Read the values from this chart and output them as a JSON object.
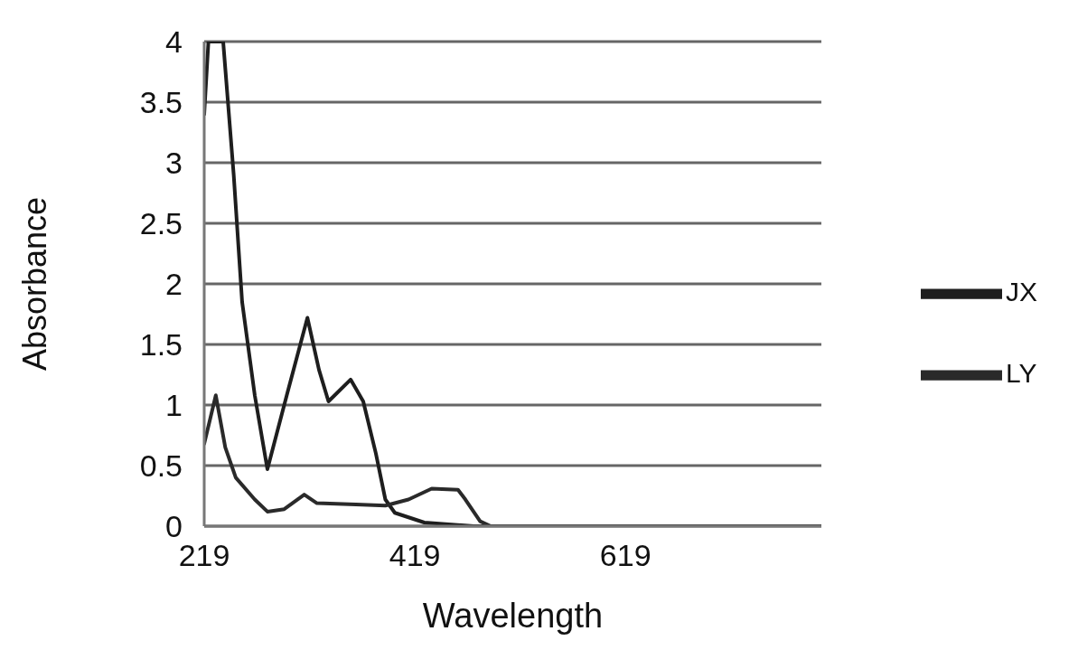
{
  "chart_data": {
    "type": "line",
    "xlabel": "Wavelength",
    "ylabel": "Absorbance",
    "xlim": [
      219,
      805
    ],
    "xticks": [
      219,
      419,
      619
    ],
    "ylim": [
      0,
      4
    ],
    "yticks": [
      0,
      0.5,
      1,
      1.5,
      2,
      2.5,
      3,
      3.5,
      4
    ],
    "grid": "y",
    "legend": "right",
    "marker": "none",
    "line_style": "solid",
    "series": [
      {
        "name": "JX",
        "color": "#1e1e1e",
        "x": [
          219,
          223,
          230,
          237,
          247,
          255,
          267,
          279,
          298,
          317,
          328,
          337,
          358,
          370,
          382,
          391,
          400,
          428,
          475,
          805
        ],
        "values": [
          3.4,
          4,
          4,
          4,
          2.9,
          1.85,
          1.08,
          0.47,
          1.1,
          1.72,
          1.29,
          1.03,
          1.21,
          1.03,
          0.6,
          0.22,
          0.11,
          0.03,
          0,
          0
        ]
      },
      {
        "name": "LY",
        "color": "#2a2a2a",
        "x": [
          219,
          230,
          239,
          249,
          267,
          279,
          295,
          314,
          326,
          363,
          391,
          413,
          435,
          460,
          467,
          481,
          491,
          805
        ],
        "values": [
          0.68,
          1.08,
          0.65,
          0.4,
          0.22,
          0.12,
          0.14,
          0.26,
          0.19,
          0.18,
          0.17,
          0.22,
          0.31,
          0.3,
          0.22,
          0.04,
          0,
          0
        ]
      }
    ]
  }
}
